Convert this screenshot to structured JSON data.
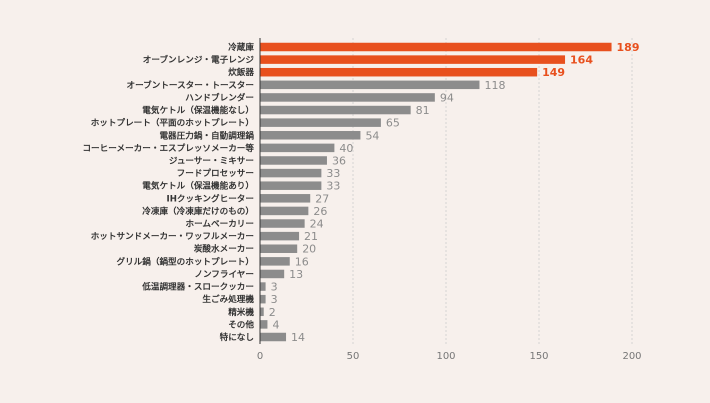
{
  "chart_data": {
    "type": "bar",
    "orientation": "horizontal",
    "title": "",
    "xlabel": "",
    "ylabel": "",
    "xlim": [
      0,
      200
    ],
    "xticks": [
      0,
      50,
      100,
      150,
      200
    ],
    "grid": true,
    "categories": [
      "冷蔵庫",
      "オーブンレンジ・電子レンジ",
      "炊飯器",
      "オーブントースター・トースター",
      "ハンドブレンダー",
      "電気ケトル（保温機能なし）",
      "ホットプレート（平面のホットプレート）",
      "電器圧力鍋・自動調理鍋",
      "コーヒーメーカー・エスプレッソメーカー等",
      "ジューサー・ミキサー",
      "フードプロセッサー",
      "電気ケトル（保温機能あり）",
      "IHクッキングヒーター",
      "冷凍庫（冷凍庫だけのもの）",
      "ホームベーカリー",
      "ホットサンドメーカー・ワッフルメーカー",
      "炭酸水メーカー",
      "グリル鍋（鍋型のホットプレート）",
      "ノンフライヤー",
      "低温調理器・スロークッカー",
      "生ごみ処理機",
      "精米機",
      "その他",
      "特になし"
    ],
    "values": [
      189,
      164,
      149,
      118,
      94,
      81,
      65,
      54,
      40,
      36,
      33,
      33,
      27,
      26,
      24,
      21,
      20,
      16,
      13,
      3,
      3,
      2,
      4,
      14
    ],
    "highlight_top_n": 3,
    "colors": {
      "highlight": "#e8501e",
      "default": "#8c8c8c",
      "value_default": "#8c8c8c",
      "axis": "#333333",
      "grid": "#cccccc",
      "background": "#f7f0ec"
    }
  }
}
